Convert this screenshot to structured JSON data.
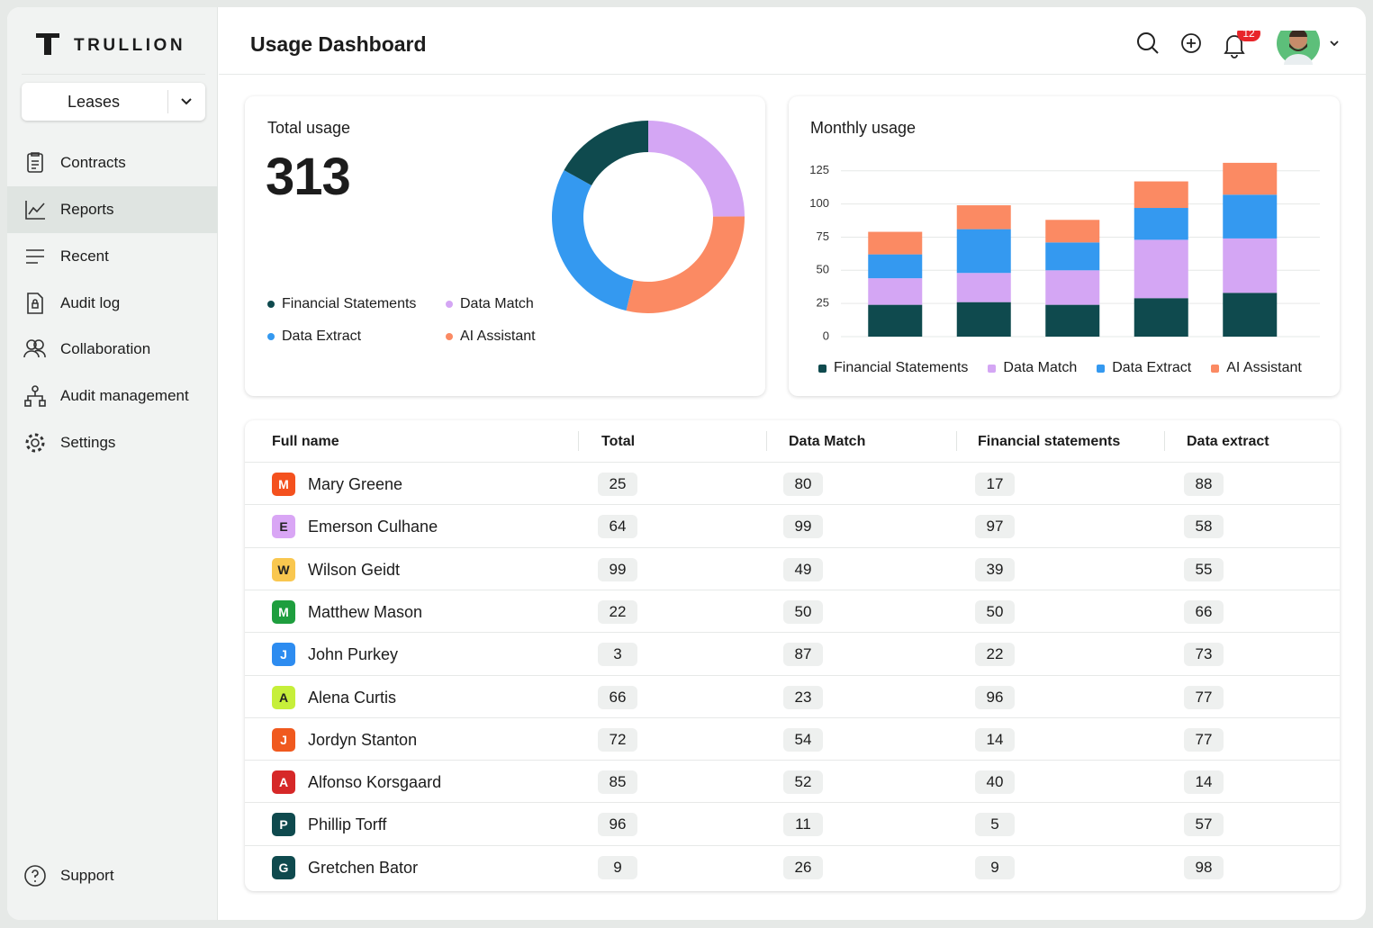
{
  "brand": "TRULLION",
  "workspace": "Leases",
  "nav": [
    {
      "label": "Contracts"
    },
    {
      "label": "Reports",
      "active": true
    },
    {
      "label": "Recent"
    },
    {
      "label": "Audit log"
    },
    {
      "label": "Collaboration"
    },
    {
      "label": "Audit management"
    },
    {
      "label": "Settings"
    }
  ],
  "support": "Support",
  "header": {
    "title": "Usage Dashboard",
    "notifications": 12
  },
  "chart_data": [
    {
      "type": "donut",
      "title": "Total usage",
      "total": 313,
      "categories": [
        "Data Match",
        "AI Assistant",
        "Data Extract",
        "Financial Statements"
      ],
      "values": [
        78,
        90,
        92,
        53
      ],
      "colors": [
        "#d4a6f4",
        "#fb8a63",
        "#3499f0",
        "#0f4a4e"
      ],
      "legend": "bottom-left"
    },
    {
      "type": "stacked_bar",
      "title": "Monthly usage",
      "categories": [
        null,
        null,
        null,
        null,
        null
      ],
      "series": [
        {
          "name": "Financial Statements",
          "color": "#0f4a4e",
          "values": [
            24,
            26,
            24,
            29,
            33
          ]
        },
        {
          "name": "Data Match",
          "color": "#d4a6f4",
          "values": [
            20,
            22,
            26,
            44,
            41
          ]
        },
        {
          "name": "Data Extract",
          "color": "#3499f0",
          "values": [
            18,
            33,
            21,
            24,
            33
          ]
        },
        {
          "name": "AI Assistant",
          "color": "#fb8a63",
          "values": [
            17,
            18,
            17,
            20,
            24
          ]
        }
      ],
      "ylim": [
        0,
        135
      ],
      "yticks": [
        0,
        25,
        50,
        75,
        100,
        125
      ],
      "grid": true,
      "legend": "bottom"
    }
  ],
  "table": {
    "columns": [
      "Full name",
      "Total",
      "Data Match",
      "Financial statements",
      "Data extract"
    ],
    "rows": [
      {
        "initial": "M",
        "name": "Mary Greene",
        "color": "#f4511e",
        "values": [
          25,
          80,
          17,
          88
        ]
      },
      {
        "initial": "E",
        "name": "Emerson Culhane",
        "color": "#d9a6f5",
        "values": [
          64,
          99,
          97,
          58
        ]
      },
      {
        "initial": "W",
        "name": "Wilson Geidt",
        "color": "#f9c74f",
        "values": [
          99,
          49,
          39,
          55
        ]
      },
      {
        "initial": "M",
        "name": "Matthew Mason",
        "color": "#1e9e3e",
        "values": [
          22,
          50,
          50,
          66
        ]
      },
      {
        "initial": "J",
        "name": "John Purkey",
        "color": "#2d8cf0",
        "values": [
          3,
          87,
          22,
          73
        ]
      },
      {
        "initial": "A",
        "name": "Alena Curtis",
        "color": "#c6ef3a",
        "values": [
          66,
          23,
          96,
          77
        ]
      },
      {
        "initial": "J",
        "name": "Jordyn Stanton",
        "color": "#f0591e",
        "values": [
          72,
          54,
          14,
          77
        ]
      },
      {
        "initial": "A",
        "name": "Alfonso Korsgaard",
        "color": "#d62828",
        "values": [
          85,
          52,
          40,
          14
        ]
      },
      {
        "initial": "P",
        "name": "Phillip Torff",
        "color": "#0f4a4e",
        "values": [
          96,
          11,
          5,
          57
        ]
      },
      {
        "initial": "G",
        "name": "Gretchen Bator",
        "color": "#0f4a4e",
        "values": [
          9,
          26,
          9,
          98
        ]
      }
    ]
  }
}
